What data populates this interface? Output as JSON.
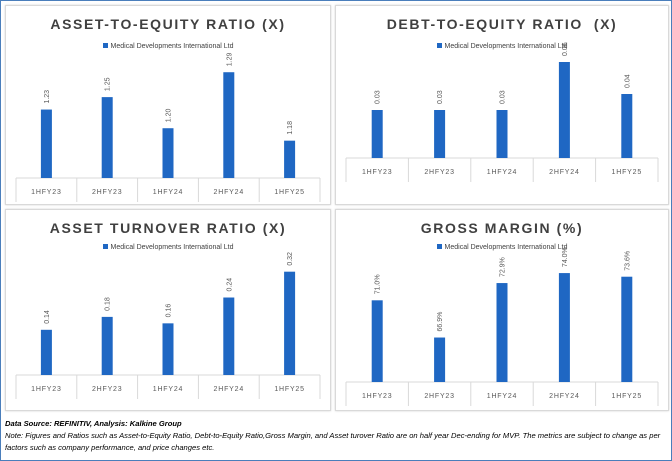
{
  "colors": {
    "bar": "#1f67c3",
    "axis": "#d9d9d9",
    "text": "#595959"
  },
  "chart_data": [
    {
      "type": "bar",
      "title": "ASSET-TO-EQUITY RATIO (X)",
      "legend": "Medical Developments International Ltd",
      "series": [
        {
          "name": "Medical Developments International Ltd",
          "values": [
            1.23,
            1.25,
            1.2,
            1.29,
            1.18
          ]
        }
      ],
      "categories": [
        "1HFY23",
        "2HFY23",
        "1HFY24",
        "2HFY24",
        "1HFY25"
      ],
      "labels": [
        "1.23",
        "1.25",
        "1.20",
        "1.29",
        "1.18"
      ],
      "ylim": [
        1.12,
        1.3
      ]
    },
    {
      "type": "bar",
      "title": "DEBT-TO-EQUITY RATIO  (X)",
      "legend": "Medical Developments International Ltd",
      "series": [
        {
          "name": "Medical Developments International Ltd",
          "values": [
            0.03,
            0.03,
            0.03,
            0.06,
            0.04
          ]
        }
      ],
      "categories": [
        "1HFY23",
        "2HFY23",
        "1HFY24",
        "2HFY24",
        "1HFY25"
      ],
      "labels": [
        "0.03",
        "0.03",
        "0.03",
        "0.06",
        "0.04"
      ],
      "ylim": [
        0,
        0.065
      ]
    },
    {
      "type": "bar",
      "title": "ASSET TURNOVER RATIO (X)",
      "legend": "Medical Developments International Ltd",
      "series": [
        {
          "name": "Medical Developments International Ltd",
          "values": [
            0.14,
            0.18,
            0.16,
            0.24,
            0.32
          ]
        }
      ],
      "categories": [
        "1HFY23",
        "2HFY23",
        "1HFY24",
        "2HFY24",
        "1HFY25"
      ],
      "labels": [
        "0.14",
        "0.18",
        "0.16",
        "0.24",
        "0.32"
      ],
      "ylim": [
        0,
        0.35
      ]
    },
    {
      "type": "bar",
      "title": "GROSS MARGIN (%)",
      "legend": "Medical Developments International Ltd",
      "series": [
        {
          "name": "Medical Developments International Ltd",
          "values": [
            71.0,
            66.9,
            72.9,
            74.0,
            73.6
          ]
        }
      ],
      "categories": [
        "1HFY23",
        "2HFY23",
        "1HFY24",
        "2HFY24",
        "1HFY25"
      ],
      "labels": [
        "71.0%",
        "66.9%",
        "72.9%",
        "74.0%",
        "73.6%"
      ],
      "ylim": [
        62,
        75
      ]
    }
  ],
  "footer": {
    "source": "Data Source: REFINITIV, Analysis: Kalkine Group",
    "note": "Note: Figures and Ratios such as  Asset-to-Equity Ratio, Debt-to-Equity Ratio,Gross Margin, and Asset turover Ratio are on half year Dec-ending for MVP. The metrics are subject to change as per factors such as company performance, and price changes etc."
  }
}
